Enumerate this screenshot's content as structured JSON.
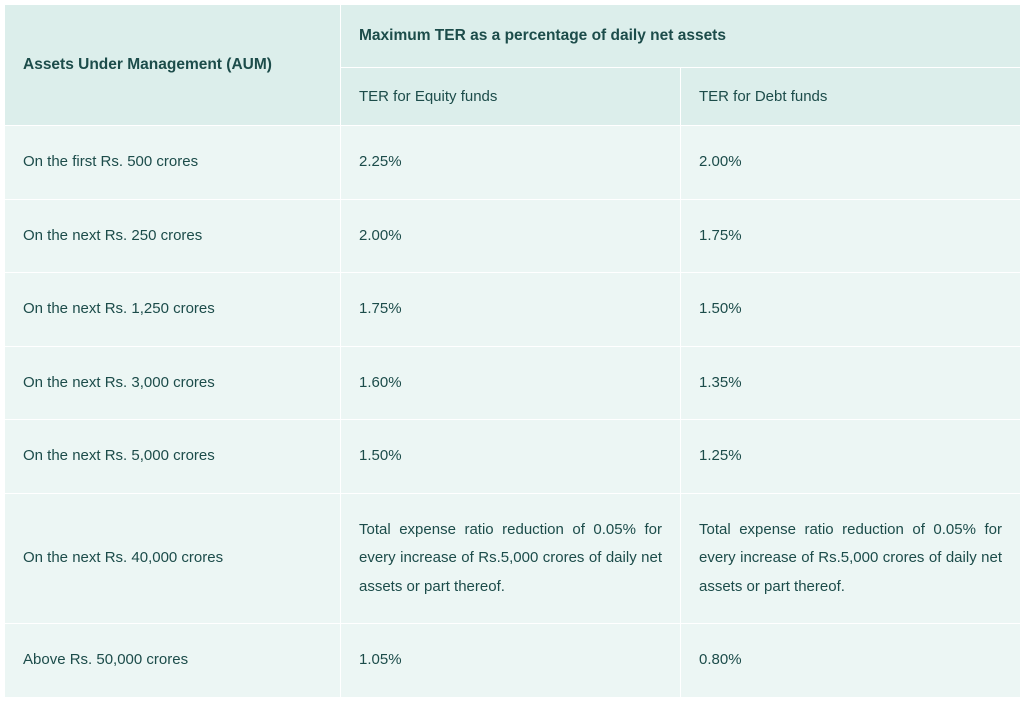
{
  "table": {
    "type": "table",
    "background_color": "#ecf6f4",
    "header_background_color": "#dceeeb",
    "border_color": "#ffffff",
    "text_color": "#1c4c4a",
    "header_fontsize": 15.5,
    "cell_fontsize": 15,
    "header": {
      "aum": "Assets Under Management (AUM)",
      "max_ter": "Maximum TER as a percentage of daily net assets",
      "equity": "TER for Equity funds",
      "debt": "TER for Debt funds"
    },
    "rows": [
      {
        "aum": "On the first Rs. 500 crores",
        "equity": "2.25%",
        "debt": "2.00%"
      },
      {
        "aum": "On the next Rs. 250 crores",
        "equity": "2.00%",
        "debt": "1.75%"
      },
      {
        "aum": "On the next Rs. 1,250 crores",
        "equity": "1.75%",
        "debt": "1.50%"
      },
      {
        "aum": "On the next Rs. 3,000 crores",
        "equity": "1.60%",
        "debt": "1.35%"
      },
      {
        "aum": "On the next Rs. 5,000 crores",
        "equity": "1.50%",
        "debt": "1.25%"
      },
      {
        "aum": "On the next Rs. 40,000 crores",
        "equity": "Total expense ratio reduction of 0.05% for every increase of Rs.5,000 crores of\ndaily net assets or part thereof.",
        "debt": "Total expense ratio reduction of 0.05% for every increase of Rs.5,000 crores of\ndaily net assets or part thereof."
      },
      {
        "aum": "Above Rs. 50,000 crores",
        "equity": "1.05%",
        "debt": "0.80%"
      }
    ]
  }
}
